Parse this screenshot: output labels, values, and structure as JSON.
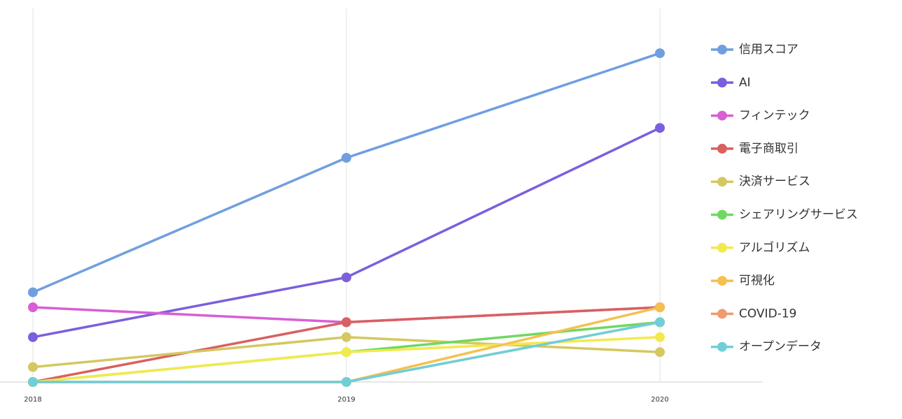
{
  "chart_data": {
    "type": "line",
    "categories": [
      "2018",
      "2019",
      "2020"
    ],
    "ylim": [
      0,
      25
    ],
    "grid": true,
    "legend": "right",
    "series": [
      {
        "name": "信用スコア",
        "color": "#6f9fdf",
        "values": [
          6,
          15,
          22
        ]
      },
      {
        "name": "AI",
        "color": "#7b5fdc",
        "values": [
          3,
          7,
          17
        ]
      },
      {
        "name": "フィンテック",
        "color": "#d85fd4",
        "values": [
          5,
          4,
          5
        ]
      },
      {
        "name": "電子商取引",
        "color": "#d96060",
        "values": [
          0,
          4,
          5
        ]
      },
      {
        "name": "決済サービス",
        "color": "#d4c860",
        "values": [
          1,
          3,
          2
        ]
      },
      {
        "name": "シェアリングサービス",
        "color": "#6fd860",
        "values": [
          0,
          2,
          4
        ]
      },
      {
        "name": "アルゴリズム",
        "color": "#f2ea4d",
        "values": [
          0,
          2,
          3
        ]
      },
      {
        "name": "可視化",
        "color": "#f5c050",
        "values": [
          0,
          0,
          5
        ]
      },
      {
        "name": "COVID-19",
        "color": "#ef9a70",
        "values": [
          0,
          0,
          4
        ]
      },
      {
        "name": "オープンデータ",
        "color": "#6fcfd8",
        "values": [
          0,
          0,
          4
        ]
      }
    ]
  }
}
